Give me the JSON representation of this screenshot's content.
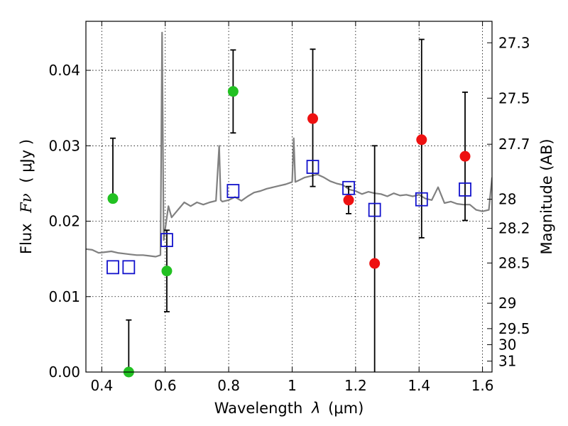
{
  "chart_data": {
    "type": "scatter",
    "xlabel_prefix": "Wavelength",
    "xlabel_symbol": "λ",
    "xlabel_unit": "(μm)",
    "ylabel_prefix": "Flux",
    "ylabel_symbol": "Fν",
    "ylabel_unit": "( μJy )",
    "y2label": "Magnitude (AB)",
    "xlim": [
      0.35,
      1.63
    ],
    "ylim": [
      0.0,
      0.0465
    ],
    "grid": true,
    "x_ticks": [
      0.4,
      0.6,
      0.8,
      1.0,
      1.2,
      1.4,
      1.6
    ],
    "x_tick_labels": [
      "0.4",
      "0.6",
      "0.8",
      "1",
      "1.2",
      "1.4",
      "1.6"
    ],
    "y_ticks": [
      0.0,
      0.01,
      0.02,
      0.03,
      0.04
    ],
    "y_tick_labels": [
      "0.00",
      "0.01",
      "0.02",
      "0.03",
      "0.04"
    ],
    "y2_ticks": [
      27.3,
      27.5,
      27.7,
      28,
      28.2,
      28.5,
      29,
      29.5,
      30,
      31
    ],
    "y2_tick_labels": [
      "27.3",
      "27.5",
      "27.7",
      "28",
      "28.2",
      "28.5",
      "29",
      "29.5",
      "30",
      "31"
    ],
    "colors": {
      "template": "#808080",
      "green": "#22c122",
      "red": "#ee1111",
      "model": "#1212cc",
      "errorbar": "#000000"
    },
    "series": [
      {
        "name": "template spectrum",
        "kind": "line",
        "x": [
          0.35,
          0.37,
          0.39,
          0.41,
          0.43,
          0.45,
          0.47,
          0.49,
          0.51,
          0.53,
          0.55,
          0.57,
          0.585,
          0.59,
          0.595,
          0.6,
          0.61,
          0.62,
          0.64,
          0.66,
          0.68,
          0.7,
          0.72,
          0.74,
          0.76,
          0.77,
          0.775,
          0.78,
          0.8,
          0.82,
          0.84,
          0.86,
          0.88,
          0.9,
          0.92,
          0.94,
          0.96,
          0.98,
          1.0,
          1.005,
          1.01,
          1.02,
          1.04,
          1.06,
          1.08,
          1.1,
          1.12,
          1.14,
          1.16,
          1.18,
          1.2,
          1.22,
          1.24,
          1.26,
          1.28,
          1.3,
          1.32,
          1.34,
          1.36,
          1.38,
          1.4,
          1.42,
          1.44,
          1.46,
          1.48,
          1.5,
          1.52,
          1.54,
          1.56,
          1.58,
          1.6,
          1.62,
          1.63
        ],
        "y": [
          0.0163,
          0.0162,
          0.0158,
          0.0159,
          0.016,
          0.0158,
          0.0157,
          0.0156,
          0.0155,
          0.0155,
          0.0154,
          0.0153,
          0.0155,
          0.045,
          0.0175,
          0.019,
          0.022,
          0.0205,
          0.0215,
          0.0225,
          0.022,
          0.0225,
          0.0222,
          0.0225,
          0.0227,
          0.03,
          0.0228,
          0.0226,
          0.0228,
          0.0232,
          0.0227,
          0.0233,
          0.0238,
          0.024,
          0.0243,
          0.0245,
          0.0247,
          0.0249,
          0.0252,
          0.031,
          0.0252,
          0.0254,
          0.0258,
          0.026,
          0.0262,
          0.0258,
          0.0253,
          0.025,
          0.0248,
          0.0242,
          0.024,
          0.0236,
          0.0239,
          0.0237,
          0.0236,
          0.0233,
          0.0237,
          0.0234,
          0.0235,
          0.0233,
          0.0235,
          0.023,
          0.0228,
          0.0245,
          0.0224,
          0.0226,
          0.0223,
          0.0222,
          0.0222,
          0.0215,
          0.0213,
          0.0215,
          0.0258
        ]
      },
      {
        "name": "observed (green)",
        "kind": "points",
        "color_key": "green",
        "x": [
          0.435,
          0.485,
          0.605,
          0.814
        ],
        "y": [
          0.023,
          0.0,
          0.0134,
          0.0372
        ],
        "err_low": [
          0.0,
          0.0,
          0.0054,
          0.0055
        ],
        "err_high": [
          0.008,
          0.0069,
          0.0054,
          0.0055
        ]
      },
      {
        "name": "observed (red)",
        "kind": "points",
        "color_key": "red",
        "x": [
          1.065,
          1.178,
          1.26,
          1.408,
          1.545
        ],
        "y": [
          0.0336,
          0.0228,
          0.0144,
          0.0308,
          0.0286
        ],
        "err_low": [
          0.009,
          0.0018,
          0.0144,
          0.013,
          0.0085
        ],
        "err_high": [
          0.0092,
          0.0018,
          0.0156,
          0.0133,
          0.0085
        ]
      },
      {
        "name": "model photometry",
        "kind": "squares",
        "color_key": "model",
        "x": [
          0.435,
          0.485,
          0.605,
          0.814,
          1.065,
          1.178,
          1.26,
          1.408,
          1.545
        ],
        "y": [
          0.0139,
          0.0139,
          0.0175,
          0.024,
          0.0272,
          0.0244,
          0.0215,
          0.0229,
          0.0242
        ]
      }
    ]
  }
}
